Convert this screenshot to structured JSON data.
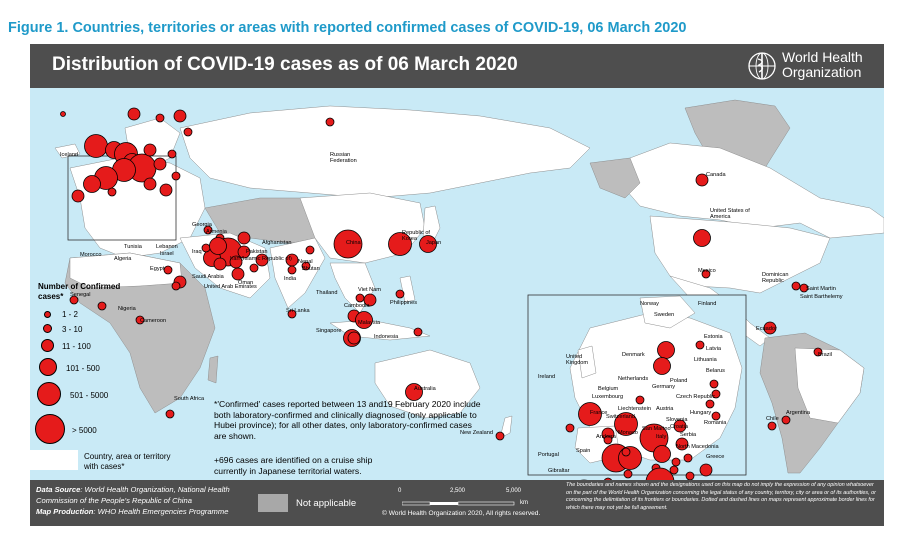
{
  "figure_title": "Figure 1. Countries, territories or areas with reported confirmed cases of COVID-19, 06 March 2020",
  "map_title": "Distribution of COVID-19 cases as of 06 March 2020",
  "who_logo": {
    "line1": "World Health",
    "line2": "Organization"
  },
  "legend": {
    "title": "Number of Confirmed cases*",
    "classes": [
      "1 - 2",
      "3 - 10",
      "11 - 100",
      "101 - 500",
      "501 - 5000",
      "> 5000"
    ],
    "country_label_1": "Country, area or territory",
    "country_label_2": "with cases*"
  },
  "notes": {
    "confirmed": "*'Confirmed' cases reported between 13 and19 February 2020 include both laboratory-confirmed and clinically diagnosed (only applicable to Hubei province); for all other dates, only laboratory-confirmed cases are shown.",
    "cruise": "+696 cases are identified on a cruise ship currently in Japanese territorial waters."
  },
  "footer": {
    "source_label": "Data Source",
    "source_text": ": World Health Organization, National Health Commission of the People's Republic of China",
    "production_label": "Map Production",
    "production_text": ": WHO Health Emergencies Programme",
    "not_applicable": "Not applicable",
    "scale_0": "0",
    "scale_mid": "2,500",
    "scale_max": "5,000",
    "scale_unit": "km",
    "copyright": "© World Health Organization 2020, All rights reserved.",
    "disclaimer": "The boundaries and names shown and the designations used on this map do not imply the expression of any opinion whatsoever on the part of the World Health Organization concerning the legal status of any country, territory, city or area or of its authorities, or concerning the delimitation of its frontiers or boundaries. Dotted and dashed lines on maps represent approximate border lines for which there may not yet be full agreement."
  },
  "country_labels": {
    "iceland": "Iceland",
    "russia": "Russian Federation",
    "canada": "Canada",
    "usa": "United States of America",
    "georgia": "Georgia",
    "armenia": "Armenia",
    "azerbaijan": "Azerbaijan",
    "lebanon": "Lebanon",
    "israel": "Israel",
    "palestinian": "Occupied Palestinian Territory",
    "jordan": "Jordan",
    "kuwait": "Kuwait",
    "iraq": "Iraq",
    "iran": "Iran (Islamic Republic of)",
    "afghanistan": "Afghanistan",
    "pakistan": "Pakistan",
    "saudi": "Saudi Arabia",
    "uae": "United Arab Emirates",
    "qatar": "Qatar",
    "bahrain": "Bahrain",
    "oman": "Oman",
    "egypt": "Egypt",
    "tunisia": "Tunisia",
    "algeria": "Algeria",
    "morocco": "Morocco",
    "senegal": "Senegal",
    "nigeria": "Nigeria",
    "cameroon": "Cameroon",
    "south_africa": "South Africa",
    "india": "India",
    "nepal": "Nepal",
    "bhutan": "Bhutan",
    "sri_lanka": "Sri Lanka",
    "china": "China",
    "korea": "Republic of Korea",
    "japan": "Japan",
    "thailand": "Thailand",
    "viet_nam": "Viet Nam",
    "cambodia": "Cambodia",
    "philippines": "Philippines",
    "malaysia": "Malaysia",
    "singapore": "Singapore",
    "indonesia": "Indonesia",
    "australia": "Australia",
    "new_zealand": "New Zealand",
    "mexico": "Mexico",
    "dominican": "Dominican Republic",
    "saint_martin": "Saint Martin",
    "saint_barth": "Saint Barthelemy",
    "ecuador": "Ecuador",
    "brazil": "Brazil",
    "chile": "Chile",
    "argentina": "Argentina",
    "norway": "Norway",
    "finland": "Finland",
    "sweden": "Sweden",
    "estonia": "Estonia",
    "latvia": "Latvia",
    "lithuania": "Lithuania",
    "belarus": "Belarus",
    "denmark": "Denmark",
    "uk": "United Kingdom",
    "ireland": "Ireland",
    "netherlands": "Netherlands",
    "belgium": "Belgium",
    "luxembourg": "Luxembourg",
    "germany": "Germany",
    "poland": "Poland",
    "czech": "Czech Republic",
    "france": "France",
    "switzerland": "Switzerland",
    "liechtenstein": "Liechtenstein",
    "austria": "Austria",
    "hungary": "Hungary",
    "slovenia": "Slovenia",
    "croatia": "Croatia",
    "romania": "Romania",
    "san_marino": "San Marino",
    "monaco": "Monaco",
    "andorra": "Andorra",
    "italy": "Italy",
    "spain": "Spain",
    "portugal": "Portugal",
    "gibraltar": "Gibraltar",
    "north_macedonia": "North Macedonia",
    "greece": "Greece",
    "bosnia": "Bosnia and Herzegovina",
    "serbia": "Serbia"
  },
  "colors": {
    "title_blue": "#1f9ac9",
    "ocean": "#c9eaf6",
    "land_with_cases": "#ffffff",
    "land_no_cases": "#bdbdbd",
    "not_applicable": "#a8a8a8",
    "bubble": "#e51b1b",
    "panel_dark": "#4e4e4e"
  }
}
